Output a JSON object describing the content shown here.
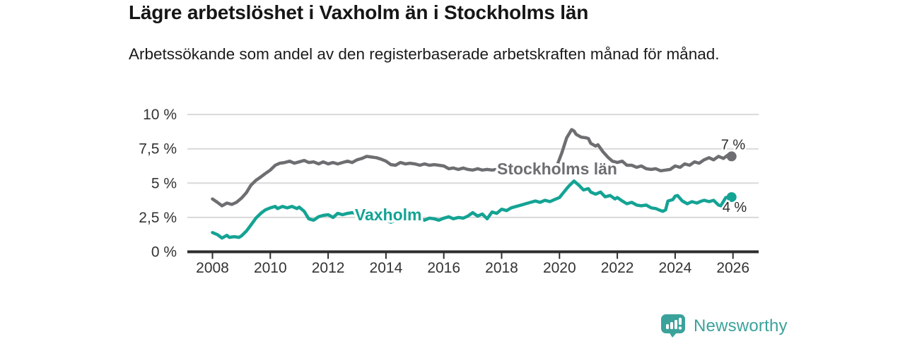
{
  "title": "Lägre arbetslöshet i Vaxholm än i Stockholms län",
  "subtitle": "Arbetssökande som andel av den registerbaserade arbetskraften månad för månad.",
  "footer": {
    "brand": "Newsworthy",
    "brand_color": "#3ba29b",
    "logo_icon": "bar-chart-speech-bubble-icon"
  },
  "colors": {
    "grid": "#d9d9d9",
    "axis": "#2d2d2d",
    "tick_text": "#333333",
    "title_text": "#161616"
  },
  "chart_data": {
    "type": "line",
    "title": "Lägre arbetslöshet i Vaxholm än i Stockholms län",
    "xlabel": "",
    "ylabel": "",
    "unit": "%",
    "grid": "horizontal",
    "legend_position": "inline-labels",
    "xlim": [
      2007.13,
      2026.9
    ],
    "ylim": [
      0,
      10
    ],
    "x_ticks": [
      2008,
      2010,
      2012,
      2014,
      2016,
      2018,
      2020,
      2022,
      2024,
      2026
    ],
    "y_ticks": [
      {
        "label": "0 %",
        "value": 0
      },
      {
        "label": "2,5 %",
        "value": 2.5
      },
      {
        "label": "5 %",
        "value": 5
      },
      {
        "label": "7,5 %",
        "value": 7.5
      },
      {
        "label": "10 %",
        "value": 10
      }
    ],
    "series": [
      {
        "name": "Stockholms län",
        "color": "#6d6e71",
        "end_label": "7 %",
        "end_label_position": "above",
        "inline_label_at": {
          "x": 2019.92,
          "y": 6.04
        },
        "x": [
          2008.0,
          2008.17,
          2008.33,
          2008.5,
          2008.67,
          2008.83,
          2009.0,
          2009.17,
          2009.33,
          2009.5,
          2009.67,
          2009.83,
          2010.0,
          2010.17,
          2010.33,
          2010.5,
          2010.67,
          2010.83,
          2011.0,
          2011.17,
          2011.33,
          2011.5,
          2011.67,
          2011.83,
          2012.0,
          2012.17,
          2012.33,
          2012.5,
          2012.67,
          2012.83,
          2013.0,
          2013.17,
          2013.33,
          2013.5,
          2013.67,
          2013.83,
          2014.0,
          2014.17,
          2014.33,
          2014.5,
          2014.67,
          2014.83,
          2015.0,
          2015.17,
          2015.33,
          2015.5,
          2015.67,
          2015.83,
          2016.0,
          2016.17,
          2016.33,
          2016.5,
          2016.67,
          2016.83,
          2017.0,
          2017.17,
          2017.33,
          2017.5,
          2017.67,
          2017.83,
          2018.0,
          2018.25,
          2018.5,
          2018.75,
          2019.0,
          2019.25,
          2019.5,
          2019.75,
          2019.92,
          2020.08,
          2020.25,
          2020.42,
          2020.5,
          2020.58,
          2020.75,
          2020.92,
          2021.0,
          2021.08,
          2021.25,
          2021.33,
          2021.5,
          2021.67,
          2021.83,
          2022.0,
          2022.17,
          2022.33,
          2022.5,
          2022.67,
          2022.83,
          2023.0,
          2023.17,
          2023.33,
          2023.5,
          2023.67,
          2023.83,
          2024.0,
          2024.17,
          2024.33,
          2024.5,
          2024.67,
          2024.83,
          2025.0,
          2025.17,
          2025.33,
          2025.5,
          2025.67,
          2025.83,
          2025.95
        ],
        "values": [
          3.85,
          3.6,
          3.35,
          3.55,
          3.45,
          3.6,
          3.9,
          4.3,
          4.85,
          5.2,
          5.45,
          5.7,
          5.95,
          6.3,
          6.45,
          6.5,
          6.6,
          6.45,
          6.55,
          6.65,
          6.5,
          6.55,
          6.4,
          6.55,
          6.4,
          6.5,
          6.4,
          6.5,
          6.6,
          6.5,
          6.7,
          6.8,
          6.95,
          6.9,
          6.85,
          6.75,
          6.6,
          6.35,
          6.3,
          6.5,
          6.4,
          6.45,
          6.4,
          6.3,
          6.4,
          6.3,
          6.35,
          6.3,
          6.25,
          6.05,
          6.1,
          6.0,
          6.1,
          6.0,
          5.95,
          6.05,
          5.95,
          6.0,
          5.95,
          6.0,
          6.0,
          5.95,
          6.0,
          5.95,
          5.9,
          5.95,
          5.9,
          6.0,
          6.3,
          7.2,
          8.3,
          8.9,
          8.8,
          8.55,
          8.35,
          8.3,
          8.25,
          7.9,
          7.7,
          7.8,
          7.3,
          6.9,
          6.6,
          6.5,
          6.6,
          6.3,
          6.3,
          6.15,
          6.25,
          6.05,
          6.0,
          6.05,
          5.9,
          5.95,
          6.0,
          6.25,
          6.15,
          6.4,
          6.3,
          6.55,
          6.45,
          6.7,
          6.85,
          6.7,
          6.95,
          6.8,
          7.05,
          6.95
        ]
      },
      {
        "name": "Vaxholm",
        "color": "#14a394",
        "end_label": "4 %",
        "end_label_position": "below",
        "inline_label_at": {
          "x": 2014.08,
          "y": 2.7
        },
        "x": [
          2008.0,
          2008.17,
          2008.33,
          2008.5,
          2008.58,
          2008.75,
          2008.92,
          2009.0,
          2009.17,
          2009.33,
          2009.5,
          2009.67,
          2009.83,
          2010.0,
          2010.17,
          2010.25,
          2010.42,
          2010.58,
          2010.75,
          2010.92,
          2011.0,
          2011.17,
          2011.33,
          2011.5,
          2011.67,
          2011.83,
          2012.0,
          2012.17,
          2012.33,
          2012.5,
          2012.67,
          2012.83,
          2013.0,
          2013.25,
          2013.5,
          2013.75,
          2014.0,
          2014.17,
          2014.33,
          2014.5,
          2014.67,
          2014.83,
          2015.0,
          2015.17,
          2015.33,
          2015.5,
          2015.67,
          2015.83,
          2016.0,
          2016.17,
          2016.33,
          2016.5,
          2016.67,
          2016.83,
          2017.0,
          2017.17,
          2017.33,
          2017.5,
          2017.67,
          2017.83,
          2018.0,
          2018.17,
          2018.33,
          2018.5,
          2018.67,
          2018.83,
          2019.0,
          2019.17,
          2019.33,
          2019.5,
          2019.67,
          2019.83,
          2020.0,
          2020.17,
          2020.33,
          2020.5,
          2020.67,
          2020.83,
          2021.0,
          2021.08,
          2021.25,
          2021.42,
          2021.58,
          2021.75,
          2021.92,
          2022.0,
          2022.17,
          2022.33,
          2022.5,
          2022.67,
          2022.83,
          2023.0,
          2023.17,
          2023.33,
          2023.5,
          2023.58,
          2023.67,
          2023.75,
          2023.92,
          2024.0,
          2024.08,
          2024.25,
          2024.42,
          2024.58,
          2024.75,
          2024.92,
          2025.0,
          2025.17,
          2025.33,
          2025.5,
          2025.58,
          2025.75,
          2025.92,
          2025.95
        ],
        "values": [
          1.4,
          1.25,
          1.0,
          1.2,
          1.05,
          1.1,
          1.05,
          1.15,
          1.5,
          1.95,
          2.45,
          2.8,
          3.05,
          3.2,
          3.3,
          3.15,
          3.3,
          3.2,
          3.3,
          3.15,
          3.25,
          2.95,
          2.4,
          2.3,
          2.55,
          2.65,
          2.7,
          2.5,
          2.8,
          2.7,
          2.8,
          2.85,
          2.8,
          2.9,
          2.85,
          2.6,
          2.3,
          2.15,
          2.35,
          2.6,
          2.7,
          2.6,
          2.65,
          2.5,
          2.3,
          2.45,
          2.4,
          2.3,
          2.45,
          2.55,
          2.4,
          2.5,
          2.45,
          2.6,
          2.85,
          2.6,
          2.75,
          2.4,
          2.9,
          2.8,
          3.1,
          3.0,
          3.2,
          3.3,
          3.4,
          3.5,
          3.6,
          3.7,
          3.6,
          3.75,
          3.65,
          3.8,
          3.95,
          4.4,
          4.8,
          5.15,
          4.85,
          4.5,
          4.6,
          4.35,
          4.2,
          4.35,
          4.0,
          4.1,
          3.85,
          3.95,
          3.7,
          3.5,
          3.6,
          3.4,
          3.35,
          3.4,
          3.2,
          3.15,
          3.0,
          2.95,
          3.05,
          3.7,
          3.8,
          4.05,
          4.1,
          3.7,
          3.5,
          3.65,
          3.55,
          3.7,
          3.75,
          3.65,
          3.75,
          3.4,
          3.35,
          3.95,
          4.0,
          3.98
        ]
      }
    ]
  }
}
